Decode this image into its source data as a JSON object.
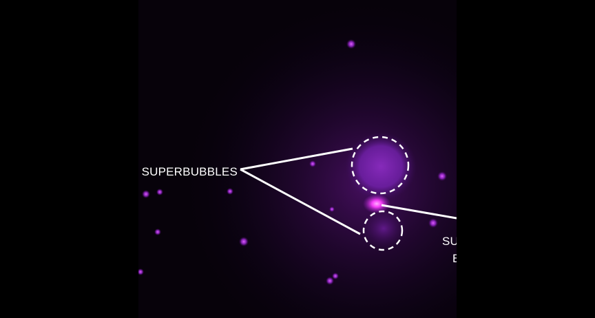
{
  "image": {
    "background_color": "#000000",
    "glow_color": "#b020e0",
    "core_color": "#ff40ff",
    "annotation_color": "#ffffff"
  },
  "labels": {
    "superbubbles": "SUPERBUBBLES",
    "right_line1": "SU",
    "right_line2": "B"
  }
}
